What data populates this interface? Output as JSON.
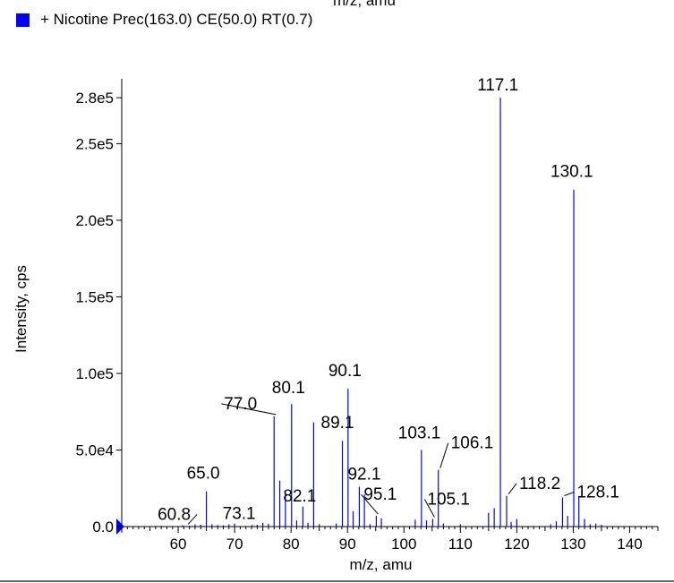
{
  "top_cut_label": "m/z, amu",
  "chart_data": {
    "type": "bar",
    "legend": {
      "label": "+ Nicotine Prec(163.0) CE(50.0) RT(0.7)",
      "color": "#0000ff"
    },
    "xlabel": "m/z, amu",
    "ylabel": "Intensity, cps",
    "xlim": [
      50,
      145
    ],
    "ylim": [
      0,
      290000
    ],
    "x_ticks": [
      60,
      70,
      80,
      90,
      100,
      110,
      120,
      130,
      140
    ],
    "x_tick_labels": [
      "60",
      "70",
      "80",
      "90",
      "100",
      "110",
      "120",
      "130",
      "140"
    ],
    "y_ticks": [
      0,
      50000,
      100000,
      150000,
      200000,
      250000,
      280000
    ],
    "y_tick_labels": [
      "0.0",
      "5.0e4",
      "1.0e5",
      "1.5e5",
      "2.0e5",
      "2.5e5",
      "2.8e5"
    ],
    "grid": false,
    "bar_color": "#0000ff",
    "peaks": [
      {
        "x": 57.0,
        "y": 500
      },
      {
        "x": 60.8,
        "y": 900
      },
      {
        "x": 62.0,
        "y": 600
      },
      {
        "x": 63.0,
        "y": 1500
      },
      {
        "x": 64.0,
        "y": 1200
      },
      {
        "x": 65.0,
        "y": 23000
      },
      {
        "x": 66.0,
        "y": 1500
      },
      {
        "x": 67.0,
        "y": 1000
      },
      {
        "x": 68.0,
        "y": 800
      },
      {
        "x": 69.0,
        "y": 1500
      },
      {
        "x": 70.0,
        "y": 2000
      },
      {
        "x": 73.1,
        "y": 1000
      },
      {
        "x": 74.0,
        "y": 1200
      },
      {
        "x": 75.0,
        "y": 2500
      },
      {
        "x": 76.0,
        "y": 1800
      },
      {
        "x": 77.0,
        "y": 72000
      },
      {
        "x": 78.0,
        "y": 30000
      },
      {
        "x": 79.0,
        "y": 22000
      },
      {
        "x": 80.1,
        "y": 80000
      },
      {
        "x": 81.0,
        "y": 4000
      },
      {
        "x": 82.1,
        "y": 13000
      },
      {
        "x": 83.0,
        "y": 2500
      },
      {
        "x": 84.0,
        "y": 68000
      },
      {
        "x": 85.0,
        "y": 1500
      },
      {
        "x": 88.0,
        "y": 2000
      },
      {
        "x": 89.1,
        "y": 56000
      },
      {
        "x": 90.1,
        "y": 90000
      },
      {
        "x": 91.0,
        "y": 10000
      },
      {
        "x": 92.1,
        "y": 26000
      },
      {
        "x": 93.0,
        "y": 21000
      },
      {
        "x": 94.0,
        "y": 1500
      },
      {
        "x": 95.1,
        "y": 7000
      },
      {
        "x": 96.0,
        "y": 5500
      },
      {
        "x": 102.0,
        "y": 4500
      },
      {
        "x": 103.1,
        "y": 50000
      },
      {
        "x": 104.0,
        "y": 4000
      },
      {
        "x": 105.1,
        "y": 5000
      },
      {
        "x": 106.1,
        "y": 37000
      },
      {
        "x": 107.0,
        "y": 2000
      },
      {
        "x": 110.0,
        "y": 1500
      },
      {
        "x": 115.0,
        "y": 9000
      },
      {
        "x": 116.0,
        "y": 12000
      },
      {
        "x": 117.1,
        "y": 280000
      },
      {
        "x": 118.2,
        "y": 20000
      },
      {
        "x": 119.0,
        "y": 3000
      },
      {
        "x": 120.0,
        "y": 5000
      },
      {
        "x": 126.0,
        "y": 1500
      },
      {
        "x": 127.0,
        "y": 3500
      },
      {
        "x": 128.1,
        "y": 19000
      },
      {
        "x": 129.0,
        "y": 7000
      },
      {
        "x": 130.1,
        "y": 220000
      },
      {
        "x": 131.0,
        "y": 19000
      },
      {
        "x": 132.0,
        "y": 5000
      },
      {
        "x": 133.0,
        "y": 1500
      },
      {
        "x": 134.0,
        "y": 2000
      },
      {
        "x": 135.0,
        "y": 1200
      }
    ],
    "annotations": [
      {
        "label": "60.8",
        "x": 60.8,
        "y": 900
      },
      {
        "label": "65.0",
        "x": 65.0,
        "y": 23000
      },
      {
        "label": "73.1",
        "x": 73.1,
        "y": 1000
      },
      {
        "label": "77.0",
        "x": 77.0,
        "y": 72000
      },
      {
        "label": "80.1",
        "x": 80.1,
        "y": 80000
      },
      {
        "label": "82.1",
        "x": 82.1,
        "y": 13000
      },
      {
        "label": "89.1",
        "x": 89.1,
        "y": 56000
      },
      {
        "label": "90.1",
        "x": 90.1,
        "y": 90000
      },
      {
        "label": "92.1",
        "x": 92.1,
        "y": 26000
      },
      {
        "label": "95.1",
        "x": 95.1,
        "y": 7000
      },
      {
        "label": "103.1",
        "x": 103.1,
        "y": 50000
      },
      {
        "label": "105.1",
        "x": 105.1,
        "y": 5000
      },
      {
        "label": "106.1",
        "x": 106.1,
        "y": 37000
      },
      {
        "label": "117.1",
        "x": 117.1,
        "y": 280000
      },
      {
        "label": "118.2",
        "x": 118.2,
        "y": 20000
      },
      {
        "label": "128.1",
        "x": 128.1,
        "y": 19000
      },
      {
        "label": "130.1",
        "x": 130.1,
        "y": 220000
      }
    ]
  }
}
